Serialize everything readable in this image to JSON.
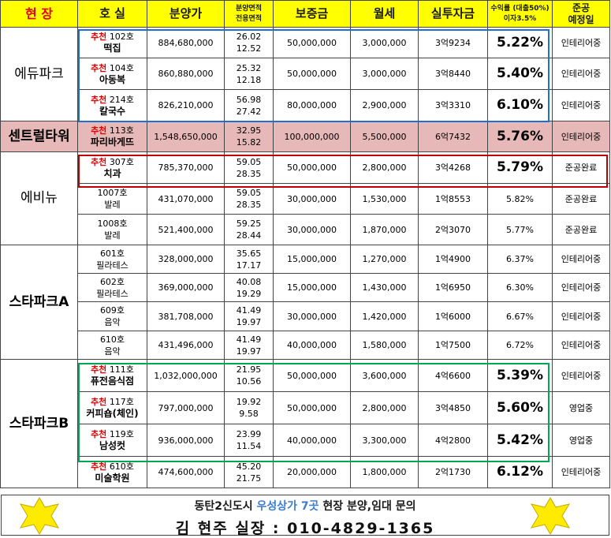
{
  "header": {
    "site": "현 장",
    "unit": "호 실",
    "price": "분양가",
    "area_top": "분양면적",
    "area_bottom": "전용면적",
    "deposit": "보증금",
    "rent": "월세",
    "investment": "실투자금",
    "yield_top": "수익률 (대출50%)",
    "yield_bottom": "이자3.5%",
    "schedule_top": "준공",
    "schedule_bottom": "예정일"
  },
  "recommend_label": "추천",
  "groups": [
    {
      "site": "에듀파크",
      "rows": [
        {
          "rec": true,
          "unit": "102호",
          "name": "떡집",
          "price": "884,680,000",
          "area": "26.02",
          "exclusive": "12.52",
          "deposit": "50,000,000",
          "rent": "3,000,000",
          "invest": "3억9234",
          "yield": "5.22%",
          "status": "인테리어중"
        },
        {
          "rec": true,
          "unit": "104호",
          "name": "아동복",
          "price": "860,880,000",
          "area": "25.32",
          "exclusive": "12.18",
          "deposit": "50,000,000",
          "rent": "3,000,000",
          "invest": "3억8440",
          "yield": "5.40%",
          "status": "인테리어중"
        },
        {
          "rec": true,
          "unit": "214호",
          "name": "칼국수",
          "price": "826,210,000",
          "area": "56.98",
          "exclusive": "27.42",
          "deposit": "80,000,000",
          "rent": "2,900,000",
          "invest": "3억3310",
          "yield": "6.10%",
          "status": "인테리어중"
        }
      ]
    },
    {
      "site": "센트럴타워",
      "rows": [
        {
          "rec": true,
          "unit": "113호",
          "name": "파리바게뜨",
          "price": "1,548,650,000",
          "area": "32.95",
          "exclusive": "15.82",
          "deposit": "100,000,000",
          "rent": "5,500,000",
          "invest": "6억7432",
          "yield": "5.76%",
          "status": "인테리어중"
        }
      ]
    },
    {
      "site": "에비뉴",
      "rows": [
        {
          "rec": true,
          "unit": "307호",
          "name": "치과",
          "price": "785,370,000",
          "area": "59.05",
          "exclusive": "28.35",
          "deposit": "50,000,000",
          "rent": "2,800,000",
          "invest": "3억4268",
          "yield": "5.79%",
          "status": "준공완료"
        },
        {
          "rec": false,
          "unit": "1007호",
          "name": "발레",
          "price": "431,070,000",
          "area": "59.05",
          "exclusive": "28.35",
          "deposit": "30,000,000",
          "rent": "1,530,000",
          "invest": "1억8553",
          "yield": "5.82%",
          "status": "준공완료"
        },
        {
          "rec": false,
          "unit": "1008호",
          "name": "발레",
          "price": "521,400,000",
          "area": "59.25",
          "exclusive": "28.44",
          "deposit": "30,000,000",
          "rent": "1,870,000",
          "invest": "2억3070",
          "yield": "5.77%",
          "status": "준공완료"
        }
      ]
    },
    {
      "site": "스타파크A",
      "rows": [
        {
          "rec": false,
          "unit": "601호",
          "name": "필라테스",
          "price": "328,000,000",
          "area": "35.65",
          "exclusive": "17.17",
          "deposit": "15,000,000",
          "rent": "1,270,000",
          "invest": "1억4900",
          "yield": "6.37%",
          "status": "인테리어중"
        },
        {
          "rec": false,
          "unit": "602호",
          "name": "필라테스",
          "price": "369,000,000",
          "area": "40.08",
          "exclusive": "19.29",
          "deposit": "15,000,000",
          "rent": "1,430,000",
          "invest": "1억6950",
          "yield": "6.30%",
          "status": "인테리어중"
        },
        {
          "rec": false,
          "unit": "609호",
          "name": "음악",
          "price": "381,708,000",
          "area": "41.49",
          "exclusive": "19.97",
          "deposit": "30,000,000",
          "rent": "1,420,000",
          "invest": "1억6000",
          "yield": "6.67%",
          "status": "인테리어중"
        },
        {
          "rec": false,
          "unit": "610호",
          "name": "음악",
          "price": "431,496,000",
          "area": "41.49",
          "exclusive": "19.97",
          "deposit": "40,000,000",
          "rent": "1,580,000",
          "invest": "1억7500",
          "yield": "6.72%",
          "status": "인테리어중"
        }
      ]
    },
    {
      "site": "스타파크B",
      "rows": [
        {
          "rec": true,
          "unit": "111호",
          "name": "퓨전음식점",
          "price": "1,032,000,000",
          "area": "21.95",
          "exclusive": "10.56",
          "deposit": "50,000,000",
          "rent": "3,600,000",
          "invest": "4억6600",
          "yield": "5.39%",
          "status": "인테리어중"
        },
        {
          "rec": true,
          "unit": "117호",
          "name": "커피숍(체인)",
          "price": "797,000,000",
          "area": "19.92",
          "exclusive": "9.58",
          "deposit": "50,000,000",
          "rent": "2,800,000",
          "invest": "3억4850",
          "yield": "5.60%",
          "status": "영업중"
        },
        {
          "rec": true,
          "unit": "119호",
          "name": "남성컷",
          "price": "936,000,000",
          "area": "23.99",
          "exclusive": "11.54",
          "deposit": "40,000,000",
          "rent": "3,300,000",
          "invest": "4억2800",
          "yield": "5.42%",
          "status": "영업중"
        },
        {
          "rec": true,
          "unit": "610호",
          "name": "미술학원",
          "price": "474,600,000",
          "area": "45.20",
          "exclusive": "21.75",
          "deposit": "20,000,000",
          "rent": "1,800,000",
          "invest": "2억1730",
          "yield": "6.12%",
          "status": "인테리어중"
        }
      ]
    }
  ],
  "footer": {
    "line1_a": "동탄2신도시",
    "line1_hl": "우성상가 7곳",
    "line1_b": "현장 분양,임대 문의",
    "line2": "김 현주 실장 : 010-4829-1365"
  },
  "colors": {
    "header_bg": "#ffff00",
    "recommend": "#e30000",
    "central_bg": "#e6b8b7",
    "box_blue": "#1f6fd1",
    "box_red": "#c00000",
    "box_green": "#00a650",
    "star": "#ffeb00"
  }
}
